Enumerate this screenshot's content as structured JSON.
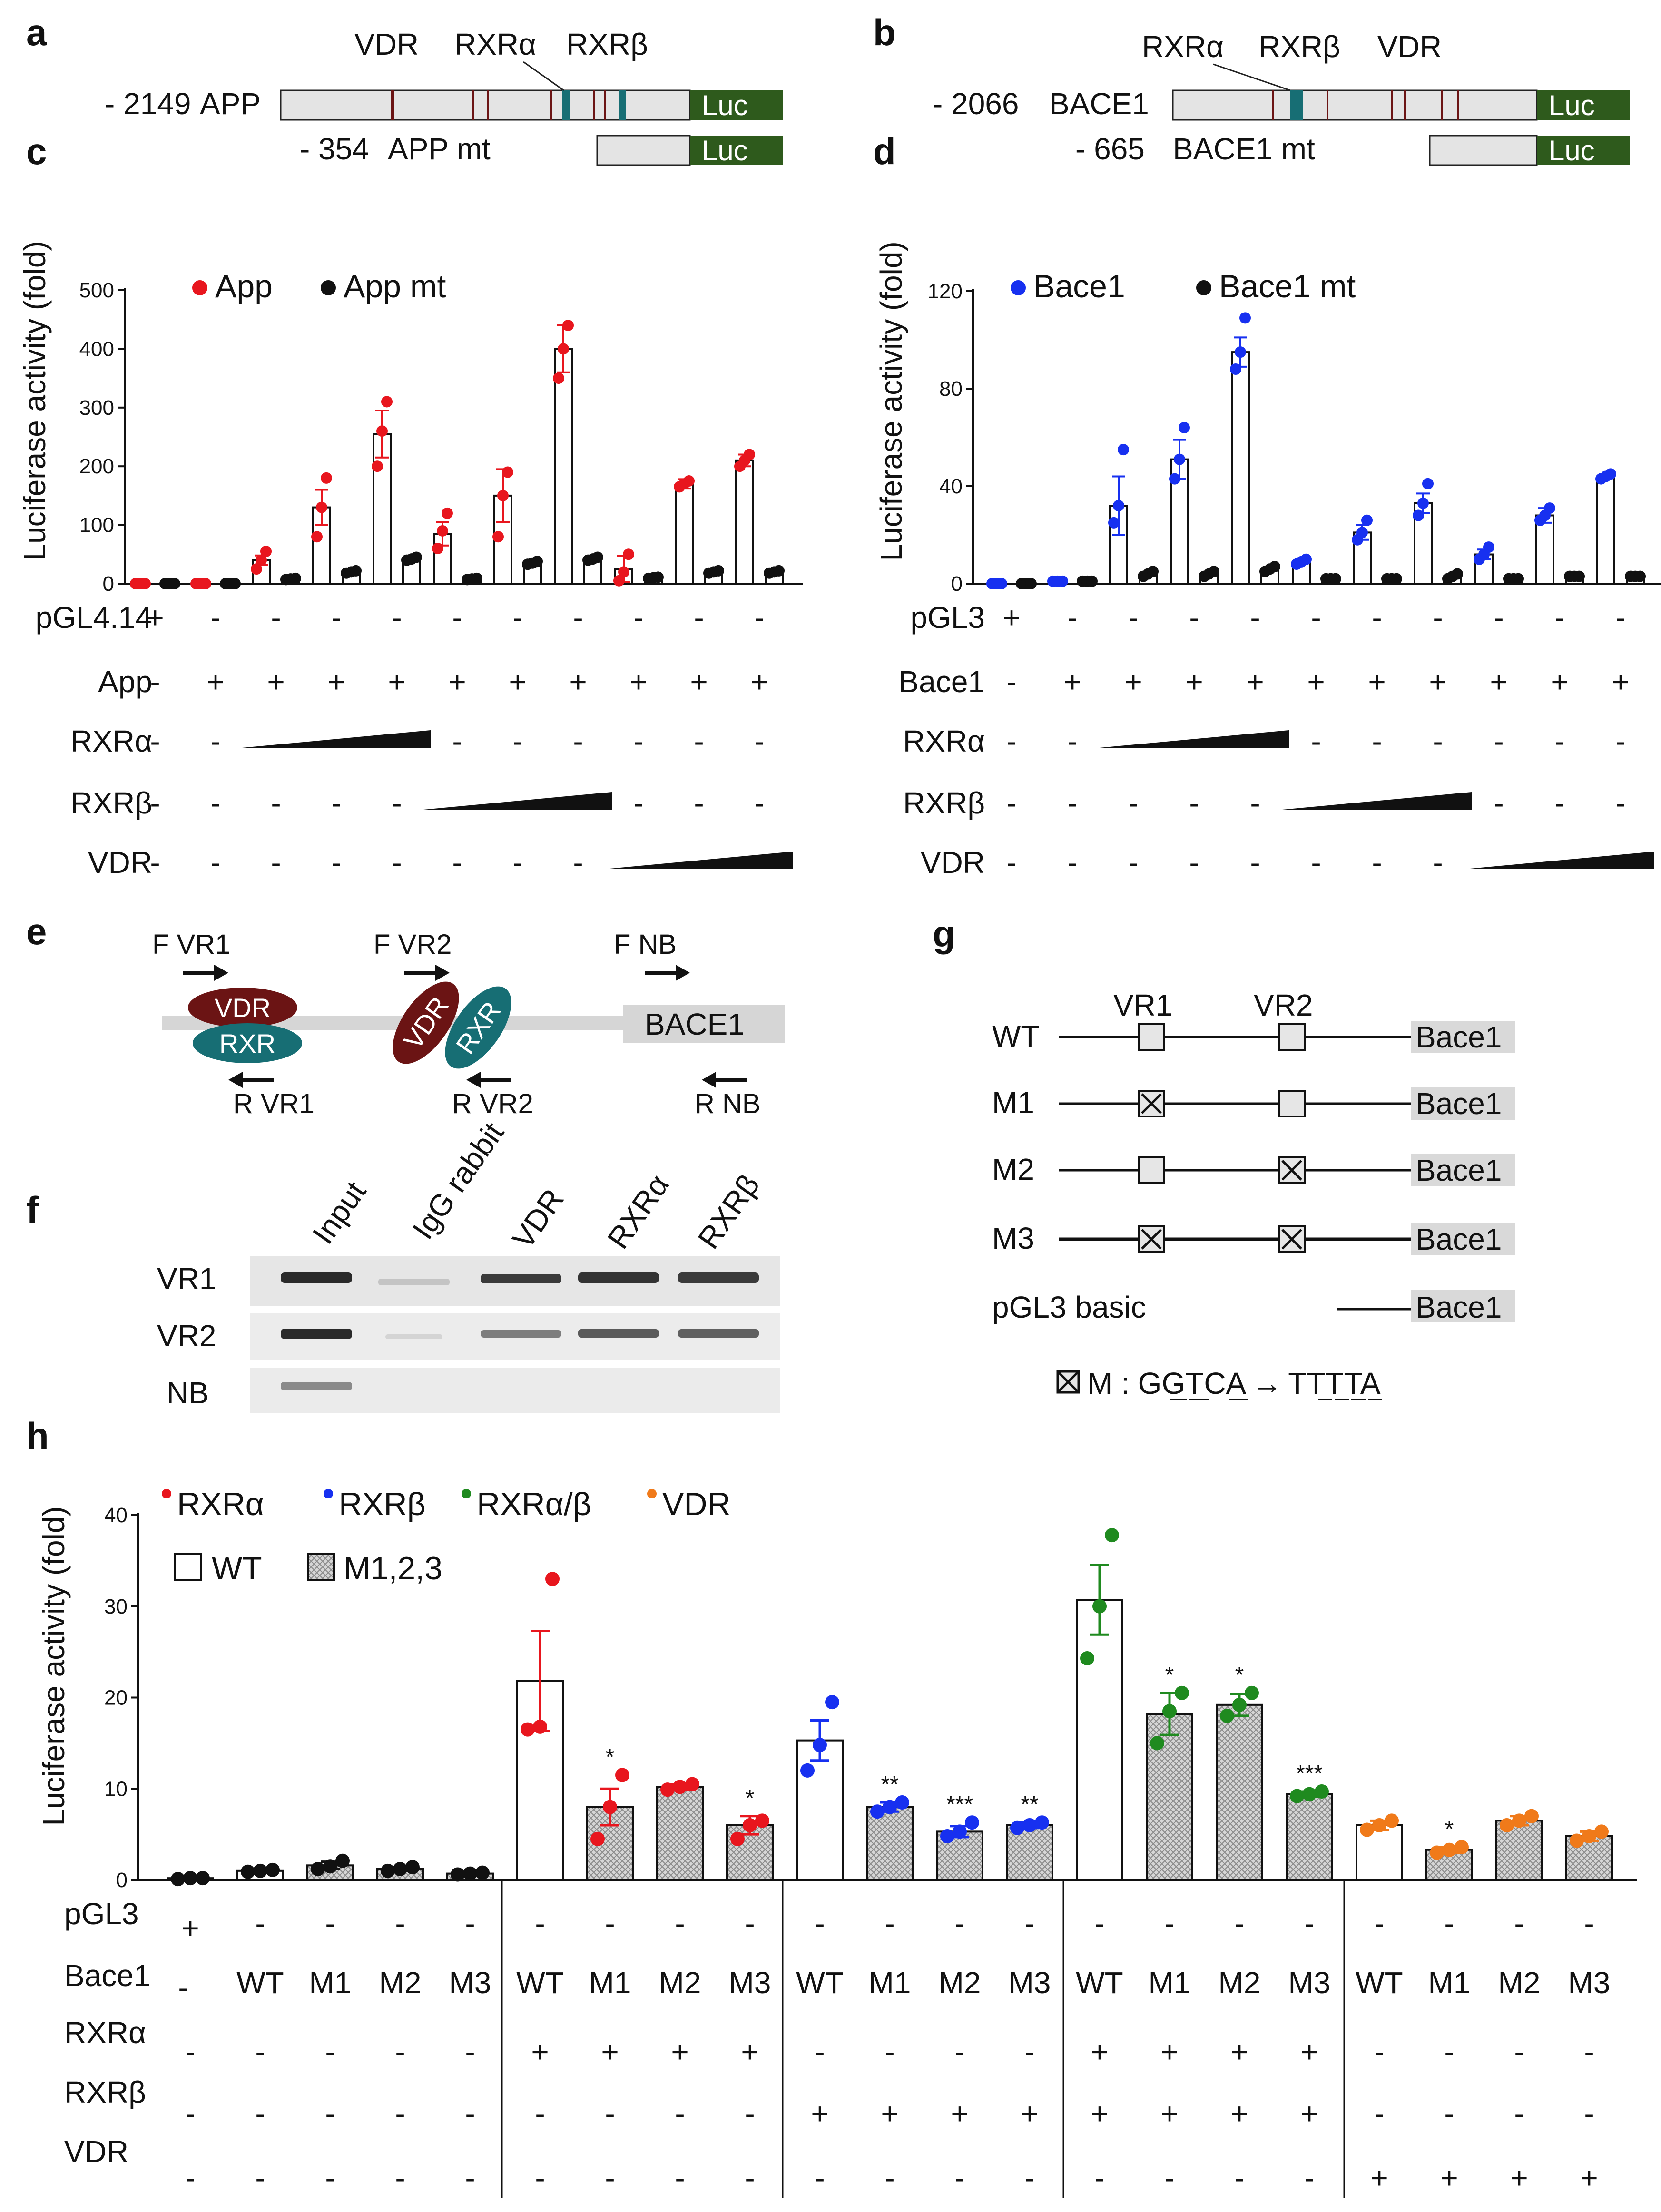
{
  "colors": {
    "red": "#e8161e",
    "blue": "#1730f0",
    "green": "#1f8a1f",
    "orange": "#f07a1a",
    "black": "#111111",
    "luc": "#2e5a1c",
    "vdr": "#6b1414",
    "rxr": "#176e74",
    "promoter_fill": "#e4e4e4",
    "bace1_box": "#d9d9d9"
  },
  "panels": {
    "a": {
      "letter": "a",
      "constructs": [
        {
          "pos": "- 2149",
          "name": "APP"
        },
        {
          "pos": "- 354",
          "name": "APP mt"
        }
      ],
      "site_labels": [
        "VDR",
        "RXRα",
        "RXRβ"
      ],
      "luc": "Luc"
    },
    "b": {
      "letter": "b",
      "constructs": [
        {
          "pos": "- 2066",
          "name": "BACE1"
        },
        {
          "pos": "- 665",
          "name": "BACE1 mt"
        }
      ],
      "site_labels": [
        "RXRα",
        "RXRβ",
        "VDR"
      ],
      "luc": "Luc"
    },
    "e": {
      "letter": "e",
      "primers": [
        "F VR1",
        "F VR2",
        "F NB",
        "R VR1",
        "R VR2",
        "R NB"
      ],
      "vdr": "VDR",
      "rxr": "RXR",
      "gene": "BACE1"
    },
    "f": {
      "letter": "f",
      "lanes": [
        "Input",
        "IgG rabbit",
        "VDR",
        "RXRα",
        "RXRβ"
      ],
      "rows": [
        "VR1",
        "VR2",
        "NB"
      ]
    },
    "g": {
      "letter": "g",
      "sites": [
        "VR1",
        "VR2"
      ],
      "constructs": [
        {
          "name": "WT",
          "m1": false,
          "m2": false
        },
        {
          "name": "M1",
          "m1": true,
          "m2": false
        },
        {
          "name": "M2",
          "m1": false,
          "m2": true
        },
        {
          "name": "M3",
          "m1": true,
          "m2": true
        }
      ],
      "basic": "pGL3 basic",
      "gene": "Bace1",
      "mutation_prefix": "M : ",
      "mutation_from": "GGTCA",
      "mutation_arrow": "→",
      "mutation_to": "TTTTA"
    }
  },
  "chart_data": [
    {
      "panel": "c",
      "type": "bar",
      "ylabel": "Luciferase activity (fold)",
      "ylim": [
        0,
        500
      ],
      "yticks": [
        0,
        100,
        200,
        300,
        400,
        500
      ],
      "legend": [
        "App",
        "App mt"
      ],
      "series": [
        {
          "name": "App",
          "color": "red",
          "values": [
            0,
            0,
            40,
            130,
            255,
            85,
            150,
            400,
            25,
            170,
            210
          ],
          "errors": [
            0,
            0,
            8,
            30,
            40,
            20,
            45,
            40,
            22,
            8,
            10
          ],
          "points": [
            [
              0,
              0,
              0
            ],
            [
              0,
              0,
              0
            ],
            [
              25,
              40,
              55
            ],
            [
              80,
              130,
              180
            ],
            [
              200,
              260,
              310
            ],
            [
              60,
              90,
              120
            ],
            [
              80,
              150,
              190
            ],
            [
              350,
              400,
              440
            ],
            [
              5,
              20,
              50
            ],
            [
              165,
              170,
              175
            ],
            [
              200,
              210,
              220
            ]
          ]
        },
        {
          "name": "App mt",
          "color": "black",
          "values": [
            0,
            0,
            8,
            20,
            42,
            8,
            35,
            42,
            10,
            20,
            20
          ],
          "errors": [
            0,
            0,
            1,
            2,
            3,
            1,
            3,
            3,
            1,
            2,
            2
          ],
          "points": [
            [
              0,
              0,
              0
            ],
            [
              0,
              0,
              0
            ],
            [
              7,
              8,
              9
            ],
            [
              18,
              20,
              22
            ],
            [
              40,
              42,
              45
            ],
            [
              7,
              8,
              9
            ],
            [
              33,
              35,
              38
            ],
            [
              40,
              42,
              45
            ],
            [
              9,
              10,
              11
            ],
            [
              18,
              20,
              22
            ],
            [
              18,
              20,
              22
            ]
          ]
        }
      ],
      "conditions": {
        "pGL4.14": [
          "+",
          "-",
          "-",
          "-",
          "-",
          "-",
          "-",
          "-",
          "-",
          "-",
          "-"
        ],
        "App": [
          "-",
          "+",
          "+",
          "+",
          "+",
          "+",
          "+",
          "+",
          "+",
          "+",
          "+"
        ],
        "RXRα": [
          "-",
          "-",
          "ramp",
          "ramp",
          "ramp",
          "-",
          "-",
          "-",
          "-",
          "-",
          "-"
        ],
        "RXRβ": [
          "-",
          "-",
          "-",
          "-",
          "-",
          "ramp",
          "ramp",
          "ramp",
          "-",
          "-",
          "-"
        ],
        "VDR": [
          "-",
          "-",
          "-",
          "-",
          "-",
          "-",
          "-",
          "-",
          "ramp",
          "ramp",
          "ramp"
        ]
      },
      "row_labels": [
        "pGL4.14",
        "App",
        "RXRα",
        "RXRβ",
        "VDR"
      ]
    },
    {
      "panel": "d",
      "type": "bar",
      "ylabel": "Luciferase activity (fold)",
      "ylim": [
        0,
        120
      ],
      "yticks": [
        0,
        40,
        80,
        120
      ],
      "legend": [
        "Bace1",
        "Bace1 mt"
      ],
      "series": [
        {
          "name": "Bace1",
          "color": "blue",
          "values": [
            0,
            1,
            32,
            51,
            95,
            9,
            21,
            33,
            12,
            28,
            44
          ],
          "errors": [
            0,
            0.2,
            12,
            8,
            6,
            1,
            3,
            4,
            2,
            3,
            1
          ],
          "points": [
            [
              0,
              0,
              0
            ],
            [
              1,
              1,
              1
            ],
            [
              25,
              32,
              55
            ],
            [
              43,
              51,
              64
            ],
            [
              88,
              95,
              109
            ],
            [
              8,
              9,
              10
            ],
            [
              18,
              21,
              26
            ],
            [
              28,
              33,
              41
            ],
            [
              10,
              12,
              15
            ],
            [
              26,
              28,
              31
            ],
            [
              43,
              44,
              45
            ]
          ]
        },
        {
          "name": "Bace1 mt",
          "color": "black",
          "values": [
            0,
            1,
            4,
            4,
            6,
            2,
            2,
            3,
            2,
            3,
            3
          ],
          "errors": [
            0,
            0.2,
            0.5,
            0.5,
            0.5,
            0.3,
            0.3,
            0.5,
            0.3,
            0.3,
            0.3
          ],
          "points": [
            [
              0,
              0,
              0
            ],
            [
              1,
              1,
              1
            ],
            [
              3,
              4,
              5
            ],
            [
              3,
              4,
              5
            ],
            [
              5,
              6,
              7
            ],
            [
              2,
              2,
              2
            ],
            [
              2,
              2,
              2
            ],
            [
              2,
              3,
              4
            ],
            [
              2,
              2,
              2
            ],
            [
              3,
              3,
              3
            ],
            [
              3,
              3,
              3
            ]
          ]
        }
      ],
      "conditions": {
        "pGL3": [
          "+",
          "-",
          "-",
          "-",
          "-",
          "-",
          "-",
          "-",
          "-",
          "-",
          "-"
        ],
        "Bace1": [
          "-",
          "+",
          "+",
          "+",
          "+",
          "+",
          "+",
          "+",
          "+",
          "+",
          "+"
        ],
        "RXRα": [
          "-",
          "-",
          "ramp",
          "ramp",
          "ramp",
          "-",
          "-",
          "-",
          "-",
          "-",
          "-"
        ],
        "RXRβ": [
          "-",
          "-",
          "-",
          "-",
          "-",
          "ramp",
          "ramp",
          "ramp",
          "-",
          "-",
          "-"
        ],
        "VDR": [
          "-",
          "-",
          "-",
          "-",
          "-",
          "-",
          "-",
          "-",
          "ramp",
          "ramp",
          "ramp"
        ]
      },
      "row_labels": [
        "pGL3",
        "Bace1",
        "RXRα",
        "RXRβ",
        "VDR"
      ]
    },
    {
      "panel": "h",
      "type": "bar",
      "ylabel": "Luciferase activity (fold)",
      "ylim": [
        0,
        40
      ],
      "yticks": [
        0,
        10,
        20,
        30,
        40
      ],
      "legend_colors": [
        {
          "name": "RXRα",
          "color": "red"
        },
        {
          "name": "RXRβ",
          "color": "blue"
        },
        {
          "name": "RXRα/β",
          "color": "green"
        },
        {
          "name": "VDR",
          "color": "orange"
        }
      ],
      "legend_fills": [
        "WT",
        "M1,2,3"
      ],
      "bars": [
        {
          "v": 0.2,
          "e": 0,
          "c": "black",
          "h": false,
          "pts": [
            0.1,
            0.2,
            0.2
          ],
          "sig": ""
        },
        {
          "v": 1.0,
          "e": 0.1,
          "c": "black",
          "h": false,
          "pts": [
            0.9,
            1.0,
            1.1
          ],
          "sig": ""
        },
        {
          "v": 1.6,
          "e": 0.4,
          "c": "black",
          "h": true,
          "pts": [
            1.2,
            1.5,
            2.1
          ],
          "sig": ""
        },
        {
          "v": 1.2,
          "e": 0.2,
          "c": "black",
          "h": true,
          "pts": [
            1.0,
            1.2,
            1.4
          ],
          "sig": ""
        },
        {
          "v": 0.7,
          "e": 0.1,
          "c": "black",
          "h": true,
          "pts": [
            0.6,
            0.7,
            0.8
          ],
          "sig": ""
        },
        {
          "v": 21.8,
          "e": 5.5,
          "c": "red",
          "h": false,
          "pts": [
            16.5,
            16.8,
            33.0
          ],
          "sig": ""
        },
        {
          "v": 8.0,
          "e": 2.0,
          "c": "red",
          "h": true,
          "pts": [
            4.5,
            8.0,
            11.5
          ],
          "sig": "*"
        },
        {
          "v": 10.2,
          "e": 0.3,
          "c": "red",
          "h": true,
          "pts": [
            9.9,
            10.2,
            10.5
          ],
          "sig": ""
        },
        {
          "v": 6.0,
          "e": 1.0,
          "c": "red",
          "h": true,
          "pts": [
            4.5,
            6.0,
            6.5
          ],
          "sig": "*"
        },
        {
          "v": 15.3,
          "e": 2.2,
          "c": "blue",
          "h": false,
          "pts": [
            12.0,
            14.8,
            19.5
          ],
          "sig": ""
        },
        {
          "v": 8.0,
          "e": 0.5,
          "c": "blue",
          "h": true,
          "pts": [
            7.5,
            8.0,
            8.5
          ],
          "sig": "**"
        },
        {
          "v": 5.3,
          "e": 0.6,
          "c": "blue",
          "h": true,
          "pts": [
            4.8,
            5.3,
            6.3
          ],
          "sig": "***"
        },
        {
          "v": 6.0,
          "e": 0.3,
          "c": "blue",
          "h": true,
          "pts": [
            5.7,
            6.0,
            6.3
          ],
          "sig": "**"
        },
        {
          "v": 30.7,
          "e": 3.8,
          "c": "green",
          "h": false,
          "pts": [
            24.3,
            30.0,
            37.8
          ],
          "sig": ""
        },
        {
          "v": 18.2,
          "e": 2.3,
          "c": "green",
          "h": true,
          "pts": [
            15.0,
            18.5,
            20.5
          ],
          "sig": "*"
        },
        {
          "v": 19.2,
          "e": 1.2,
          "c": "green",
          "h": true,
          "pts": [
            18.0,
            19.2,
            20.5
          ],
          "sig": "*"
        },
        {
          "v": 9.4,
          "e": 0.3,
          "c": "green",
          "h": true,
          "pts": [
            9.2,
            9.4,
            9.7
          ],
          "sig": "***"
        },
        {
          "v": 6.0,
          "e": 0.5,
          "c": "orange",
          "h": false,
          "pts": [
            5.5,
            6.0,
            6.5
          ],
          "sig": ""
        },
        {
          "v": 3.3,
          "e": 0.3,
          "c": "orange",
          "h": true,
          "pts": [
            3.0,
            3.3,
            3.6
          ],
          "sig": "*"
        },
        {
          "v": 6.5,
          "e": 0.5,
          "c": "orange",
          "h": true,
          "pts": [
            6.0,
            6.5,
            7.0
          ],
          "sig": ""
        },
        {
          "v": 4.8,
          "e": 0.5,
          "c": "orange",
          "h": true,
          "pts": [
            4.3,
            4.8,
            5.3
          ],
          "sig": ""
        }
      ],
      "conditions": {
        "pGL3": [
          "+",
          "-",
          "-",
          "-",
          "-",
          "-",
          "-",
          "-",
          "-",
          "-",
          "-",
          "-",
          "-",
          "-",
          "-",
          "-",
          "-",
          "-",
          "-",
          "-",
          "-"
        ],
        "Bace1": [
          "-",
          "WT",
          "M1",
          "M2",
          "M3",
          "WT",
          "M1",
          "M2",
          "M3",
          "WT",
          "M1",
          "M2",
          "M3",
          "WT",
          "M1",
          "M2",
          "M3",
          "WT",
          "M1",
          "M2",
          "M3"
        ],
        "RXRα": [
          "-",
          "-",
          "-",
          "-",
          "-",
          "+",
          "+",
          "+",
          "+",
          "-",
          "-",
          "-",
          "-",
          "+",
          "+",
          "+",
          "+",
          "-",
          "-",
          "-",
          "-"
        ],
        "RXRβ": [
          "-",
          "-",
          "-",
          "-",
          "-",
          "-",
          "-",
          "-",
          "-",
          "+",
          "+",
          "+",
          "+",
          "+",
          "+",
          "+",
          "+",
          "-",
          "-",
          "-",
          "-"
        ],
        "VDR": [
          "-",
          "-",
          "-",
          "-",
          "-",
          "-",
          "-",
          "-",
          "-",
          "-",
          "-",
          "-",
          "-",
          "-",
          "-",
          "-",
          "-",
          "+",
          "+",
          "+",
          "+"
        ]
      },
      "row_labels": [
        "pGL3",
        "Bace1",
        "RXRα",
        "RXRβ",
        "VDR"
      ]
    }
  ]
}
